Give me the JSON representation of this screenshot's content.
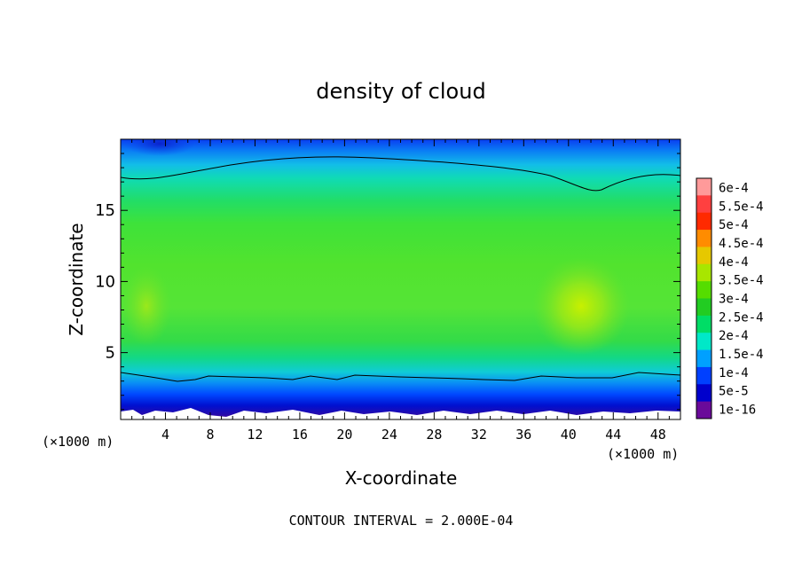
{
  "chart_data": {
    "type": "heatmap",
    "title": "density of cloud",
    "xlabel": "X-coordinate",
    "ylabel": "Z-coordinate",
    "x_unit_label_left": "(×1000 m)",
    "x_unit_label_right": "(×1000 m)",
    "footer": "CONTOUR INTERVAL = 2.000E-04",
    "x_ticks": [
      "4",
      "8",
      "12",
      "16",
      "20",
      "24",
      "28",
      "32",
      "36",
      "40",
      "44",
      "48"
    ],
    "y_ticks": [
      "5",
      "10",
      "15"
    ],
    "xlim": [
      0,
      50
    ],
    "ylim": [
      0.3,
      20
    ],
    "colorbar": {
      "labels": [
        "6e-4",
        "5.5e-4",
        "5e-4",
        "4.5e-4",
        "4e-4",
        "3.5e-4",
        "3e-4",
        "2.5e-4",
        "2e-4",
        "1.5e-4",
        "1e-4",
        "5e-5",
        "1e-16"
      ],
      "colors": [
        "#ff9a9a",
        "#ff4040",
        "#ff2a00",
        "#ff8c00",
        "#e6c800",
        "#a8e600",
        "#55dd00",
        "#22cc22",
        "#00dd66",
        "#00e8c8",
        "#00a0ff",
        "#0040ff",
        "#0000cc",
        "#6a0a9a"
      ]
    },
    "grid": false,
    "legend": "colorbar-right"
  }
}
